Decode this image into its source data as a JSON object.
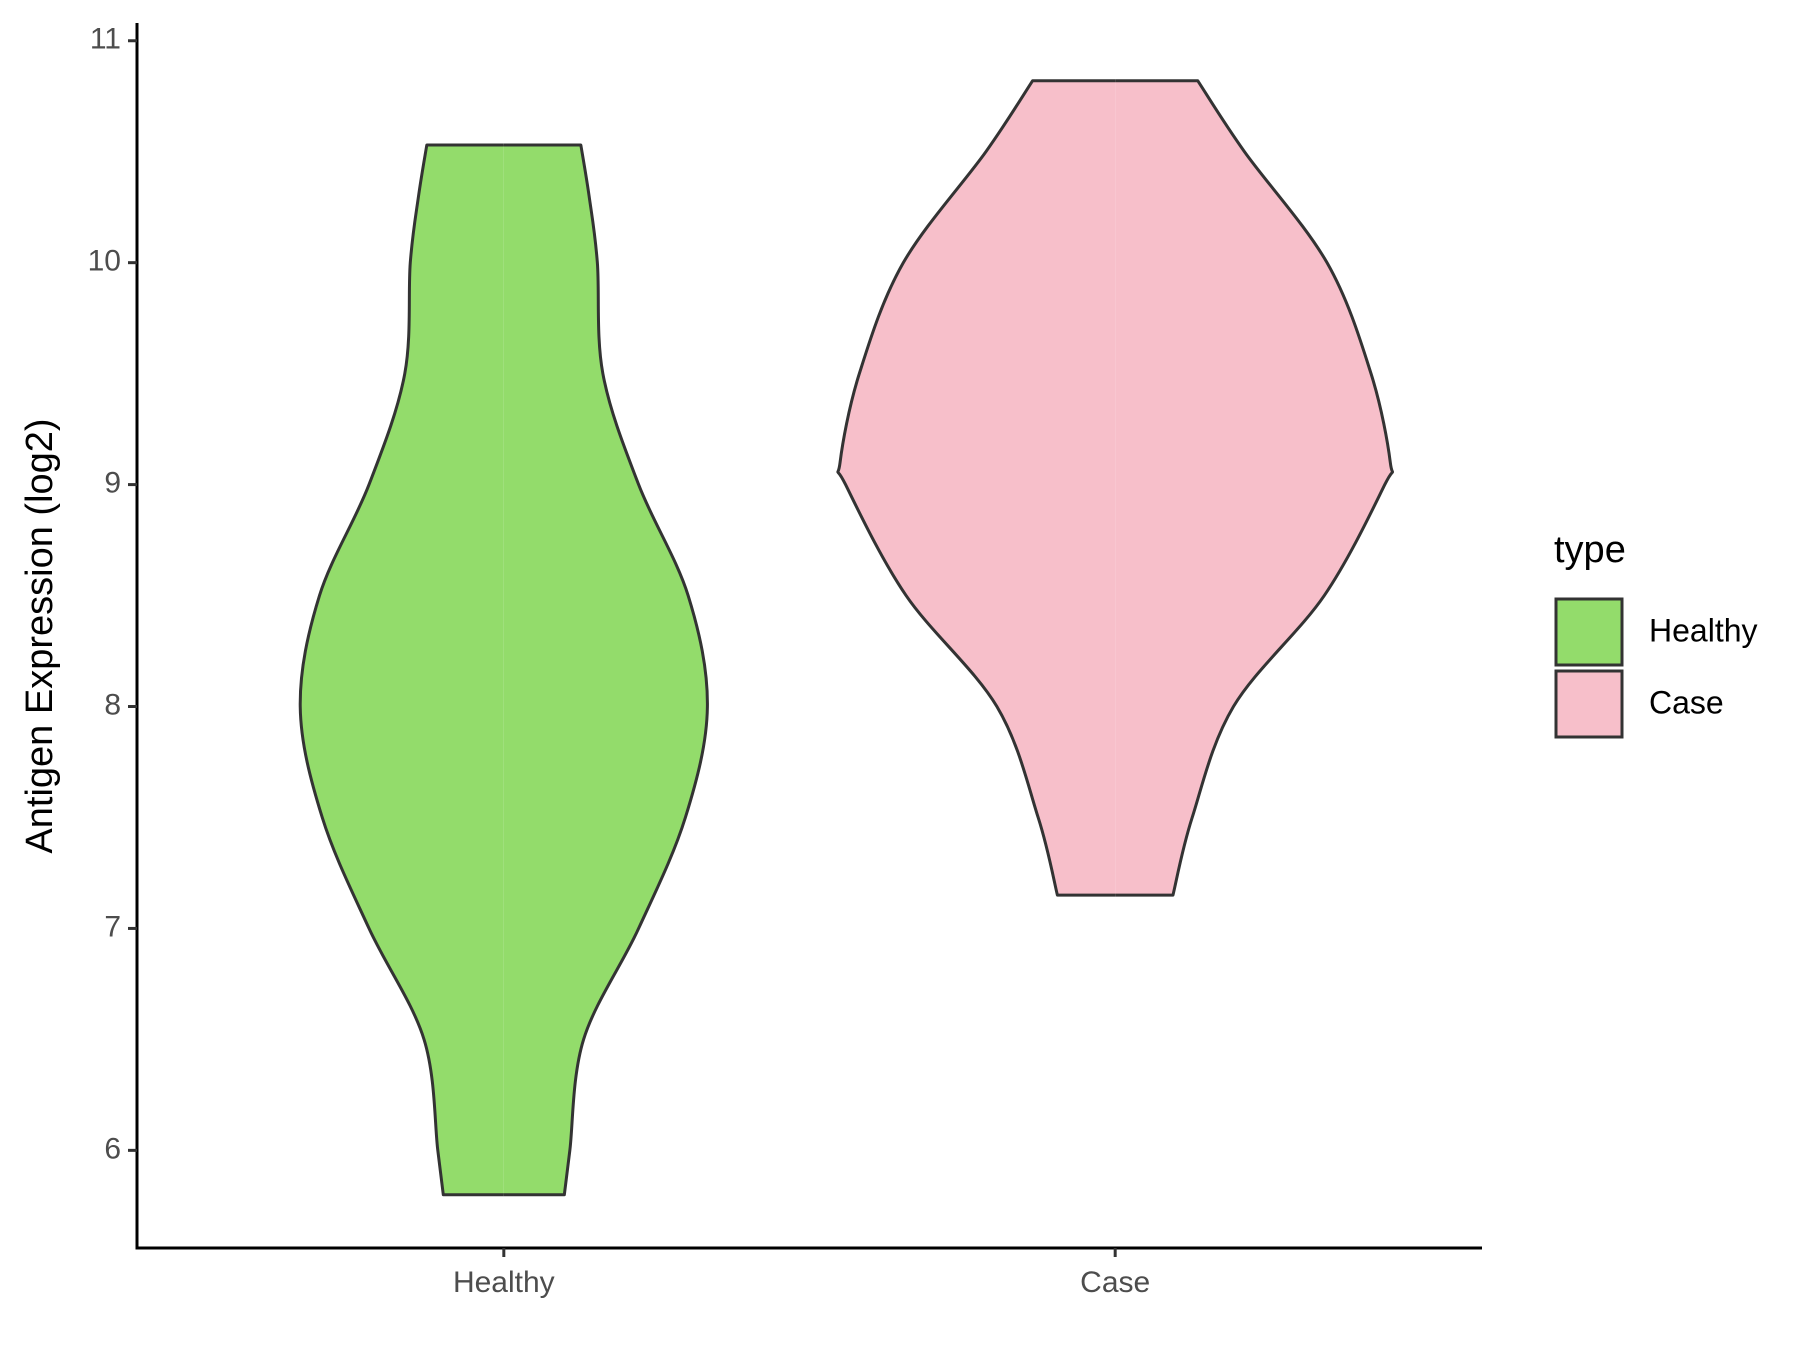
{
  "chart_data": {
    "type": "violin",
    "y_label": "Antigen Expression (log2)",
    "legend_title": "type",
    "categories": [
      "Healthy",
      "Case"
    ],
    "ylim": [
      5.56,
      11.08
    ],
    "yticks": [
      6,
      7,
      8,
      9,
      10,
      11
    ],
    "series": [
      {
        "name": "Healthy",
        "color": "#93dc6b",
        "y": [
          5.8,
          6.0,
          6.5,
          7.0,
          7.5,
          8.0,
          8.5,
          9.0,
          9.5,
          10.0,
          10.3,
          10.53
        ],
        "width": [
          0.22,
          0.24,
          0.29,
          0.49,
          0.66,
          0.74,
          0.67,
          0.49,
          0.36,
          0.34,
          0.31,
          0.28
        ]
      },
      {
        "name": "Case",
        "color": "#f7bfca",
        "y": [
          7.15,
          7.5,
          8.0,
          8.5,
          9.0,
          9.1,
          9.5,
          10.0,
          10.5,
          10.82
        ],
        "width": [
          0.21,
          0.28,
          0.43,
          0.76,
          0.98,
          1.0,
          0.93,
          0.77,
          0.47,
          0.3
        ]
      }
    ]
  }
}
